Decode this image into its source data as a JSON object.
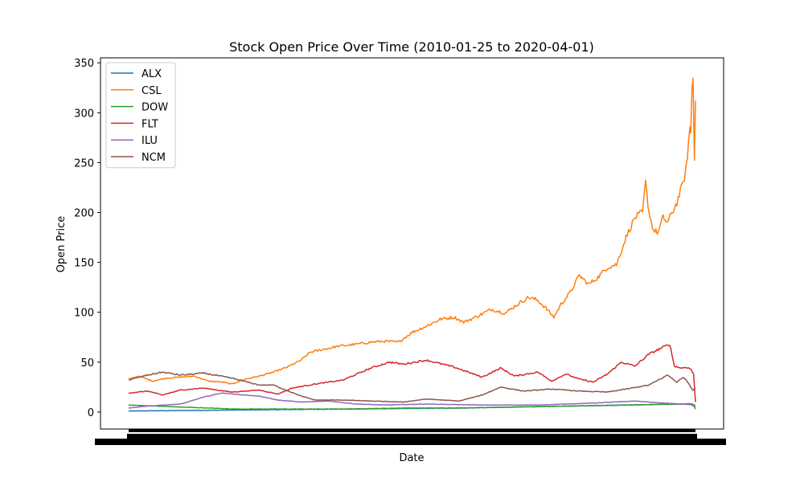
{
  "chart_data": {
    "type": "line",
    "title": "Stock Open Price Over Time (2010-01-25 to 2020-04-01)",
    "xlabel": "Date",
    "ylabel": "Open Price",
    "x_range": [
      "2010-01-25",
      "2020-04-01"
    ],
    "ylim": [
      -17,
      355
    ],
    "yticks": [
      0,
      50,
      100,
      150,
      200,
      250,
      300,
      350
    ],
    "xtick_labels_note": "Daily date tick labels rendered as an illegible, overlapping black band beneath the x-axis",
    "grid": false,
    "legend": "upper left",
    "series": [
      {
        "name": "ALX",
        "color": "#1f77b4",
        "points": [
          [
            "2010-01-25",
            1
          ],
          [
            "2011-01-01",
            1.5
          ],
          [
            "2012-01-01",
            2
          ],
          [
            "2013-01-01",
            2.5
          ],
          [
            "2014-01-01",
            3
          ],
          [
            "2015-01-01",
            3.5
          ],
          [
            "2016-01-01",
            4
          ],
          [
            "2017-01-01",
            5
          ],
          [
            "2018-01-01",
            6
          ],
          [
            "2019-01-01",
            7
          ],
          [
            "2020-01-01",
            8
          ],
          [
            "2020-02-20",
            8.5
          ],
          [
            "2020-04-01",
            5
          ]
        ]
      },
      {
        "name": "CSL",
        "color": "#ff7f0e",
        "points": [
          [
            "2010-01-25",
            33
          ],
          [
            "2010-04-01",
            36
          ],
          [
            "2010-07-01",
            31
          ],
          [
            "2010-10-01",
            34
          ],
          [
            "2011-01-01",
            35
          ],
          [
            "2011-04-01",
            36
          ],
          [
            "2011-07-01",
            31
          ],
          [
            "2011-10-01",
            30
          ],
          [
            "2011-12-01",
            28
          ],
          [
            "2012-03-01",
            33
          ],
          [
            "2012-06-01",
            36
          ],
          [
            "2012-09-01",
            40
          ],
          [
            "2012-12-01",
            45
          ],
          [
            "2013-03-01",
            52
          ],
          [
            "2013-05-01",
            60
          ],
          [
            "2013-08-01",
            63
          ],
          [
            "2013-11-01",
            66
          ],
          [
            "2014-03-01",
            68
          ],
          [
            "2014-06-01",
            70
          ],
          [
            "2014-09-01",
            71
          ],
          [
            "2014-12-01",
            70
          ],
          [
            "2015-03-01",
            80
          ],
          [
            "2015-06-01",
            86
          ],
          [
            "2015-09-01",
            93
          ],
          [
            "2015-12-01",
            95
          ],
          [
            "2016-02-01",
            90
          ],
          [
            "2016-05-01",
            96
          ],
          [
            "2016-08-01",
            103
          ],
          [
            "2016-11-01",
            99
          ],
          [
            "2017-01-01",
            106
          ],
          [
            "2017-04-01",
            115
          ],
          [
            "2017-06-01",
            112
          ],
          [
            "2017-08-01",
            103
          ],
          [
            "2017-09-15",
            95
          ],
          [
            "2017-11-01",
            108
          ],
          [
            "2018-01-01",
            120
          ],
          [
            "2018-03-01",
            137
          ],
          [
            "2018-05-01",
            128
          ],
          [
            "2018-07-01",
            135
          ],
          [
            "2018-09-01",
            145
          ],
          [
            "2018-11-01",
            148
          ],
          [
            "2019-01-01",
            175
          ],
          [
            "2019-03-01",
            195
          ],
          [
            "2019-04-20",
            200
          ],
          [
            "2019-05-10",
            230
          ],
          [
            "2019-06-01",
            200
          ],
          [
            "2019-07-01",
            182
          ],
          [
            "2019-08-01",
            180
          ],
          [
            "2019-09-01",
            195
          ],
          [
            "2019-10-01",
            190
          ],
          [
            "2019-11-01",
            200
          ],
          [
            "2019-12-01",
            210
          ],
          [
            "2020-01-01",
            225
          ],
          [
            "2020-01-20",
            235
          ],
          [
            "2020-02-01",
            245
          ],
          [
            "2020-02-15",
            270
          ],
          [
            "2020-02-25",
            285
          ],
          [
            "2020-03-01",
            280
          ],
          [
            "2020-03-10",
            330
          ],
          [
            "2020-03-15",
            338
          ],
          [
            "2020-03-20",
            300
          ],
          [
            "2020-03-25",
            252
          ],
          [
            "2020-04-01",
            312
          ]
        ]
      },
      {
        "name": "DOW",
        "color": "#2ca02c",
        "points": [
          [
            "2010-01-25",
            7
          ],
          [
            "2011-01-01",
            5
          ],
          [
            "2012-01-01",
            3
          ],
          [
            "2013-01-01",
            3
          ],
          [
            "2014-01-01",
            3
          ],
          [
            "2015-01-01",
            4
          ],
          [
            "2016-01-01",
            4
          ],
          [
            "2017-01-01",
            5
          ],
          [
            "2018-01-01",
            6
          ],
          [
            "2019-01-01",
            7
          ],
          [
            "2020-01-01",
            8
          ],
          [
            "2020-03-15",
            8
          ],
          [
            "2020-04-01",
            3
          ]
        ]
      },
      {
        "name": "FLT",
        "color": "#d62728",
        "points": [
          [
            "2010-01-25",
            19
          ],
          [
            "2010-06-01",
            21
          ],
          [
            "2010-09-01",
            17
          ],
          [
            "2011-01-01",
            22
          ],
          [
            "2011-06-01",
            24
          ],
          [
            "2011-12-01",
            20
          ],
          [
            "2012-06-01",
            22
          ],
          [
            "2012-10-01",
            18
          ],
          [
            "2013-01-01",
            24
          ],
          [
            "2013-06-01",
            28
          ],
          [
            "2013-12-01",
            32
          ],
          [
            "2014-06-01",
            44
          ],
          [
            "2014-10-01",
            50
          ],
          [
            "2015-01-01",
            48
          ],
          [
            "2015-06-01",
            52
          ],
          [
            "2015-12-01",
            45
          ],
          [
            "2016-06-01",
            35
          ],
          [
            "2016-10-01",
            44
          ],
          [
            "2017-01-01",
            36
          ],
          [
            "2017-06-01",
            40
          ],
          [
            "2017-09-01",
            31
          ],
          [
            "2017-12-01",
            38
          ],
          [
            "2018-03-01",
            33
          ],
          [
            "2018-06-01",
            30
          ],
          [
            "2018-09-01",
            38
          ],
          [
            "2018-12-01",
            50
          ],
          [
            "2019-03-01",
            46
          ],
          [
            "2019-06-01",
            58
          ],
          [
            "2019-09-01",
            65
          ],
          [
            "2019-10-15",
            68
          ],
          [
            "2019-11-15",
            46
          ],
          [
            "2020-01-01",
            44
          ],
          [
            "2020-02-01",
            45
          ],
          [
            "2020-03-01",
            43
          ],
          [
            "2020-03-20",
            38
          ],
          [
            "2020-04-01",
            10
          ]
        ]
      },
      {
        "name": "ILU",
        "color": "#9467bd",
        "points": [
          [
            "2010-01-25",
            4
          ],
          [
            "2010-06-01",
            6
          ],
          [
            "2011-01-01",
            8
          ],
          [
            "2011-06-01",
            15
          ],
          [
            "2011-10-01",
            19
          ],
          [
            "2012-03-01",
            17
          ],
          [
            "2012-06-01",
            16
          ],
          [
            "2012-10-01",
            12
          ],
          [
            "2013-03-01",
            10
          ],
          [
            "2013-09-01",
            11
          ],
          [
            "2014-03-01",
            8
          ],
          [
            "2014-09-01",
            7
          ],
          [
            "2015-06-01",
            8
          ],
          [
            "2016-06-01",
            7
          ],
          [
            "2017-06-01",
            7
          ],
          [
            "2018-06-01",
            9
          ],
          [
            "2019-03-01",
            11
          ],
          [
            "2019-09-01",
            9
          ],
          [
            "2020-01-01",
            8
          ],
          [
            "2020-04-01",
            7
          ]
        ]
      },
      {
        "name": "NCM",
        "color": "#8c564b",
        "points": [
          [
            "2010-01-25",
            32
          ],
          [
            "2010-05-01",
            36
          ],
          [
            "2010-09-01",
            40
          ],
          [
            "2011-01-01",
            37
          ],
          [
            "2011-06-01",
            39
          ],
          [
            "2011-12-01",
            34
          ],
          [
            "2012-06-01",
            27
          ],
          [
            "2012-09-01",
            27
          ],
          [
            "2013-03-01",
            16
          ],
          [
            "2013-06-01",
            12
          ],
          [
            "2013-12-01",
            12
          ],
          [
            "2014-06-01",
            11
          ],
          [
            "2015-01-01",
            10
          ],
          [
            "2015-06-01",
            13
          ],
          [
            "2016-01-01",
            11
          ],
          [
            "2016-06-01",
            17
          ],
          [
            "2016-10-01",
            25
          ],
          [
            "2017-03-01",
            21
          ],
          [
            "2017-09-01",
            23
          ],
          [
            "2018-03-01",
            21
          ],
          [
            "2018-09-01",
            20
          ],
          [
            "2019-01-01",
            23
          ],
          [
            "2019-06-01",
            27
          ],
          [
            "2019-10-01",
            37
          ],
          [
            "2019-12-01",
            30
          ],
          [
            "2020-01-15",
            35
          ],
          [
            "2020-02-15",
            29
          ],
          [
            "2020-03-15",
            22
          ],
          [
            "2020-04-01",
            24
          ]
        ]
      }
    ]
  }
}
